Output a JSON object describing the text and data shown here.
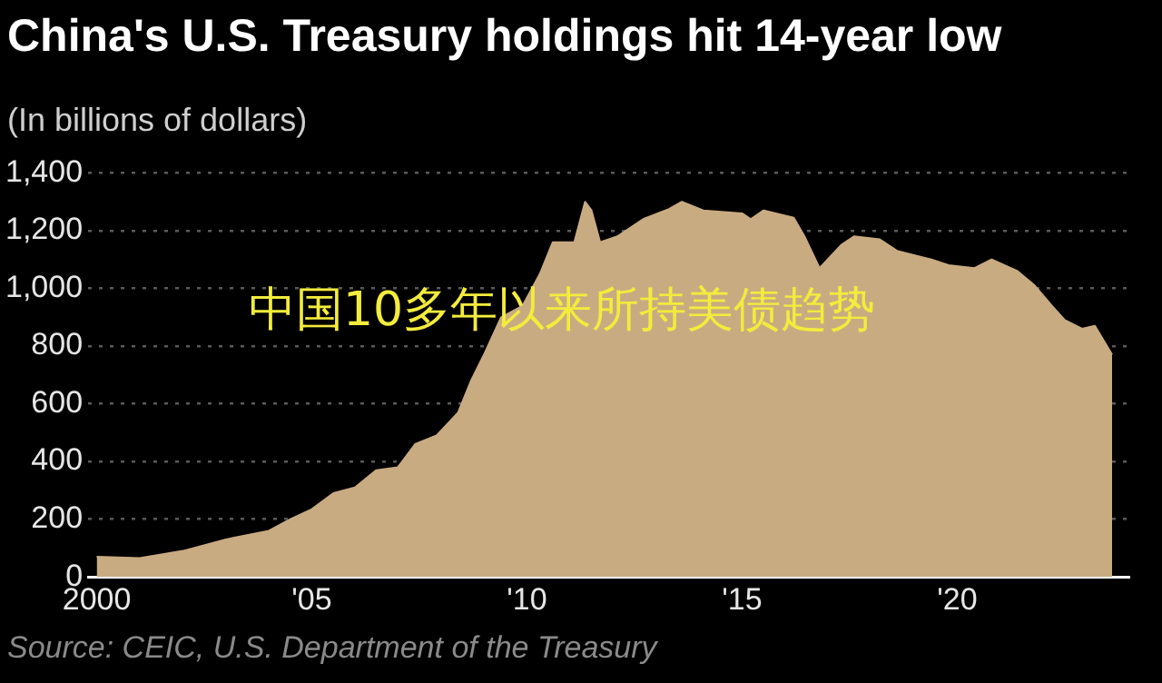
{
  "chart_data": {
    "type": "area",
    "title": "China's U.S. Treasury holdings hit 14-year low",
    "subtitle": "(In billions of dollars)",
    "annotations": [
      "中国10多年以来所持美债趋势",
      "Source: CEIC, U.S. Department of the Treasury"
    ],
    "x": [
      2000,
      2001,
      2002,
      2003,
      2004,
      2004.5,
      2005,
      2005.5,
      2006,
      2006.5,
      2007,
      2007.4,
      2007.9,
      2008.4,
      2008.7,
      2009,
      2009.4,
      2009.9,
      2010.3,
      2010.6,
      2011.1,
      2011.35,
      2011.5,
      2011.7,
      2012.1,
      2012.7,
      2013.3,
      2013.6,
      2014.1,
      2015,
      2015.2,
      2015.5,
      2016.2,
      2016.45,
      2016.8,
      2017.3,
      2017.6,
      2018.2,
      2018.6,
      2019.4,
      2019.8,
      2020.4,
      2020.8,
      2021.4,
      2021.8,
      2022.2,
      2022.5,
      2022.9,
      2023.2,
      2023.6
    ],
    "series": [
      {
        "color": "#c9ab82",
        "values": [
          70,
          65,
          90,
          130,
          160,
          200,
          235,
          290,
          310,
          370,
          380,
          460,
          490,
          570,
          680,
          770,
          900,
          940,
          1050,
          1160,
          1160,
          1300,
          1270,
          1160,
          1180,
          1240,
          1275,
          1300,
          1270,
          1260,
          1240,
          1270,
          1245,
          1180,
          1070,
          1150,
          1180,
          1170,
          1130,
          1100,
          1080,
          1070,
          1100,
          1060,
          1010,
          940,
          890,
          860,
          870,
          770
        ]
      }
    ],
    "xlim": [
      1999.8,
      2024
    ],
    "xticks": [
      {
        "value": 2000,
        "label": "2000"
      },
      {
        "value": 2005,
        "label": "'05"
      },
      {
        "value": 2010,
        "label": "'10"
      },
      {
        "value": 2015,
        "label": "'15"
      },
      {
        "value": 2020,
        "label": "'20"
      }
    ],
    "ylim": [
      0,
      1400
    ],
    "yticks": [
      0,
      200,
      400,
      600,
      800,
      {
        "value": 1000,
        "label": "1,000"
      },
      {
        "value": 1200,
        "label": "1,200"
      },
      {
        "value": 1400,
        "label": "1,400"
      }
    ],
    "grid": "y"
  }
}
